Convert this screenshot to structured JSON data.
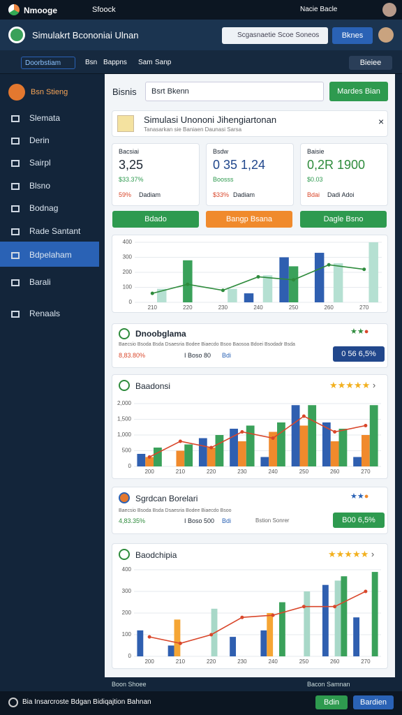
{
  "status": {
    "app": "Nmooge",
    "tab": "Sfoock",
    "right": "Nacie Bacle"
  },
  "header": {
    "title": "Simulakrt Bcononiai Ulnan",
    "search": "Scgasnaetie Scoe Soneos",
    "button": "Bknes"
  },
  "toolbar": {
    "dropdown": "Doorbstiam",
    "items": [
      "Bsn",
      "Bappns",
      "Sam",
      "Sanp"
    ],
    "button": "Bieiee"
  },
  "sidebar": {
    "profile": "Bsn Stieng",
    "items": [
      "Slemata",
      "Derin",
      "Sairpl",
      "Blsno",
      "Bodnag",
      "Rade Santant",
      "Bdpelaham",
      "Barali",
      "Renaals"
    ]
  },
  "main": {
    "label": "Bisnis",
    "search": "Bsrt Bkenn",
    "button": "Mardes Bian"
  },
  "hero": {
    "title": "Simulasi Unononi Jihengiartonan",
    "subtitle": "Tanasarkan sie Baniaen Daunasi Sarsa"
  },
  "stats": [
    {
      "label": "Bacsiai",
      "value": "3,25",
      "change": "$33.37%",
      "note1": "59%",
      "note2": "Dadiam"
    },
    {
      "label": "Bsdw",
      "value": "0 35 1,24",
      "change": "Boosss",
      "note1": "$33%",
      "note2": "Dadiam"
    },
    {
      "label": "Baisie",
      "value": "0,2R 1900",
      "change": "$0.03",
      "note1": "Bdai",
      "note2": "Dadi Adoi"
    }
  ],
  "actions": [
    "Bdado",
    "Bangp Bsana",
    "Dagle Bsno"
  ],
  "cards": [
    {
      "title": "Dnoobglama",
      "desc": "Baecsio Bsoda Bsda Dsaesria Bodee Biaecdo Bsoo Baosoa Bdoei Bsodadr Bsda",
      "change": "8,83.80%",
      "meta": "I Boso 80",
      "tag": "Bdi",
      "button": "0 56 6,5%"
    },
    {
      "title": "Sgrdcan Borelari",
      "desc": "Baecsio Bsoda Bsda Dsaesria Bodee Biaecdo Bsoo",
      "change": "4,83.35%",
      "meta": "I Boso 500",
      "tag": "Bdi",
      "extra": "Bstion Sonrer",
      "button": "B00 6,5%"
    }
  ],
  "chart_titles": [
    "Baadonsi",
    "Baodchipia"
  ],
  "charts": [
    {
      "type": "bar",
      "categories": [
        "210",
        "220",
        "230",
        "240",
        "250",
        "260",
        "270"
      ],
      "ylim": [
        0,
        400
      ],
      "yticks": [
        0,
        100,
        200,
        300,
        400
      ],
      "series": [
        {
          "color": "#2f5fb0",
          "values": [
            0,
            0,
            0,
            60,
            300,
            330,
            0
          ]
        },
        {
          "color": "#3aa15a",
          "values": [
            0,
            280,
            0,
            0,
            240,
            0,
            0
          ]
        },
        {
          "color": "#b5e0d2",
          "values": [
            90,
            0,
            90,
            180,
            0,
            260,
            400
          ]
        },
        {
          "color": "#2e8b3c",
          "style": "line",
          "values": [
            60,
            120,
            80,
            170,
            150,
            250,
            220
          ]
        }
      ]
    },
    {
      "type": "bar",
      "categories": [
        "200",
        "210",
        "220",
        "230",
        "240",
        "250",
        "260",
        "270"
      ],
      "ylim": [
        0,
        2000
      ],
      "yticks": [
        0,
        500,
        {
          "value": 1000,
          "label": "1,000"
        },
        {
          "value": 1500,
          "label": "1,500"
        },
        {
          "value": 2000,
          "label": "2,000"
        }
      ],
      "series": [
        {
          "color": "#2f5fb0",
          "values": [
            400,
            0,
            900,
            1200,
            300,
            1950,
            1400,
            300
          ]
        },
        {
          "color": "#f08a2c",
          "values": [
            300,
            500,
            600,
            800,
            1100,
            1300,
            800,
            1000
          ]
        },
        {
          "color": "#3aa15a",
          "values": [
            600,
            700,
            1000,
            1300,
            1400,
            1950,
            1200,
            1950
          ]
        },
        {
          "color": "#d9472b",
          "style": "line",
          "values": [
            300,
            800,
            600,
            1100,
            900,
            1600,
            1100,
            1300
          ]
        }
      ]
    },
    {
      "type": "bar",
      "categories": [
        "200",
        "210",
        "220",
        "230",
        "240",
        "250",
        "260",
        "270"
      ],
      "ylim": [
        0,
        400
      ],
      "yticks": [
        0,
        100,
        200,
        300,
        400
      ],
      "series": [
        {
          "color": "#2f5fb0",
          "values": [
            120,
            50,
            0,
            90,
            120,
            0,
            330,
            180
          ]
        },
        {
          "color": "#f5a534",
          "values": [
            0,
            170,
            0,
            0,
            200,
            0,
            0,
            0
          ]
        },
        {
          "color": "#a8d8c8",
          "values": [
            0,
            0,
            220,
            0,
            0,
            300,
            350,
            0
          ]
        },
        {
          "color": "#3aa15a",
          "values": [
            0,
            0,
            0,
            0,
            250,
            0,
            370,
            390
          ]
        },
        {
          "color": "#d9472b",
          "style": "line",
          "values": [
            90,
            60,
            100,
            180,
            190,
            230,
            230,
            300
          ]
        }
      ]
    }
  ],
  "footer": {
    "left": "Boon Shoee",
    "right": "Bacon Samnan"
  },
  "bottom": {
    "text": "Bia Insarcroste Bdgan Bidiqajtion Bahnan",
    "b1": "Bdin",
    "b2": "Bardien"
  }
}
